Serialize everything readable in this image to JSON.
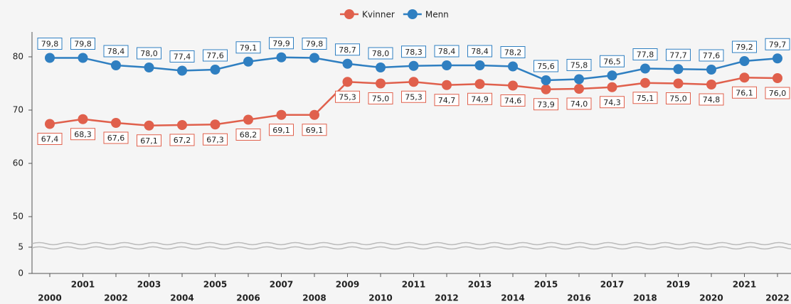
{
  "chart_data": {
    "type": "line",
    "categories": [
      "2000",
      "2001",
      "2002",
      "2003",
      "2004",
      "2005",
      "2006",
      "2007",
      "2008",
      "2009",
      "2010",
      "2011",
      "2012",
      "2013",
      "2014",
      "2015",
      "2016",
      "2017",
      "2018",
      "2019",
      "2020",
      "2021",
      "2022"
    ],
    "series": [
      {
        "name": "Kvinner",
        "color": "#e0604c",
        "values": [
          67.4,
          68.3,
          67.6,
          67.1,
          67.2,
          67.3,
          68.2,
          69.1,
          69.1,
          75.3,
          75.0,
          75.3,
          74.7,
          74.9,
          74.6,
          73.9,
          74.0,
          74.3,
          75.1,
          75.0,
          74.8,
          76.1,
          76.0
        ],
        "value_labels": [
          "67,4",
          "68,3",
          "67,6",
          "67,1",
          "67,2",
          "67,3",
          "68,2",
          "69,1",
          "69,1",
          "75,3",
          "75,0",
          "75,3",
          "74,7",
          "74,9",
          "74,6",
          "73,9",
          "74,0",
          "74,3",
          "75,1",
          "75,0",
          "74,8",
          "76,1",
          "76,0"
        ]
      },
      {
        "name": "Menn",
        "color": "#2f7fc1",
        "values": [
          79.8,
          79.8,
          78.4,
          78.0,
          77.4,
          77.6,
          79.1,
          79.9,
          79.8,
          78.7,
          78.0,
          78.3,
          78.4,
          78.4,
          78.2,
          75.6,
          75.8,
          76.5,
          77.8,
          77.7,
          77.6,
          79.2,
          79.7
        ],
        "value_labels": [
          "79,8",
          "79,8",
          "78,4",
          "78,0",
          "77,4",
          "77,6",
          "79,1",
          "79,9",
          "79,8",
          "78,7",
          "78,0",
          "78,3",
          "78,4",
          "78,4",
          "78,2",
          "75,6",
          "75,8",
          "76,5",
          "77,8",
          "77,7",
          "77,6",
          "79,2",
          "79,7"
        ]
      }
    ],
    "ylim": [
      0,
      84
    ],
    "axis_break": [
      5,
      45
    ],
    "yticks": [
      0,
      5,
      50,
      60,
      70,
      80
    ],
    "legend": "top"
  }
}
